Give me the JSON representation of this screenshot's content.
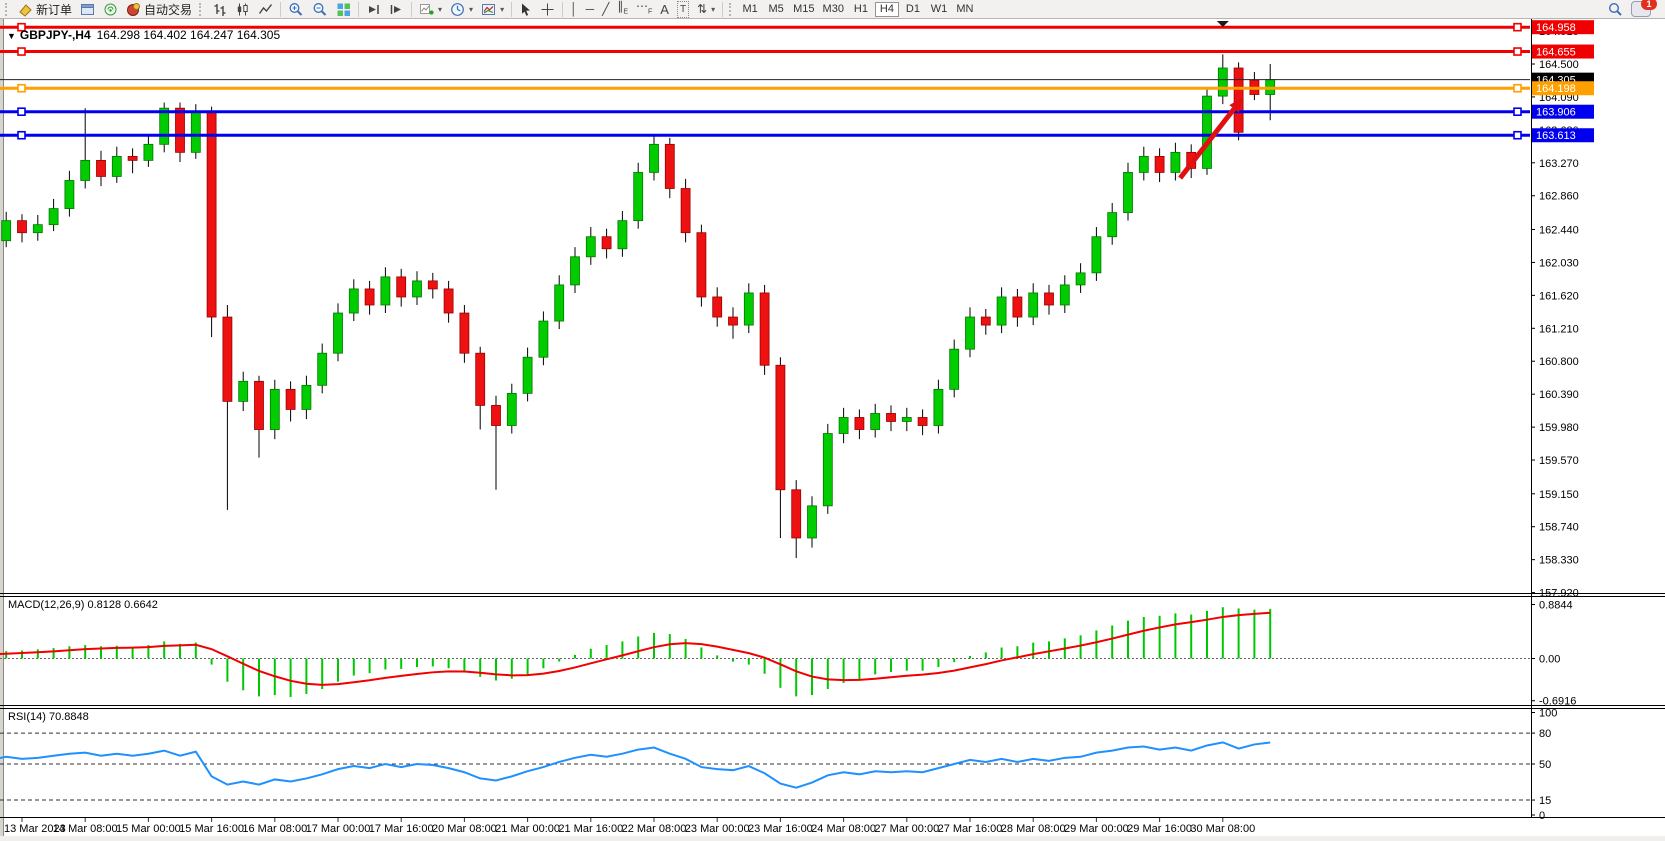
{
  "toolbar": {
    "new_order_label": "新订单",
    "autotrading_label": "自动交易",
    "timeframes": [
      "M1",
      "M5",
      "M15",
      "M30",
      "H1",
      "H4",
      "D1",
      "W1",
      "MN"
    ],
    "active_timeframe": "H4",
    "notification_count": "1"
  },
  "chart": {
    "symbol_title": "GBPJPY-,H4",
    "ohlc_text": "164.298 164.402 164.247 164.305",
    "macd_label": "MACD(12,26,9) 0.8128 0.6642",
    "rsi_label": "RSI(14) 70.8848"
  },
  "chart_data": [
    {
      "type": "candlestick",
      "title": "GBPJPY-,H4",
      "ohlc_display": {
        "open": "164.298",
        "high": "164.402",
        "low": "164.247",
        "close": "164.305"
      },
      "price_range": [
        157.915,
        165.06
      ],
      "price_axis_ticks": [
        "164.910",
        "164.500",
        "164.090",
        "163.680",
        "163.270",
        "162.860",
        "162.440",
        "162.030",
        "161.620",
        "161.210",
        "160.800",
        "160.390",
        "159.980",
        "159.570",
        "159.150",
        "158.740",
        "158.330",
        "157.920"
      ],
      "time_labels": [
        "13 Mar 2023",
        "14 Mar 08:00",
        "15 Mar 00:00",
        "15 Mar 16:00",
        "16 Mar 08:00",
        "17 Mar 00:00",
        "17 Mar 16:00",
        "20 Mar 08:00",
        "21 Mar 00:00",
        "21 Mar 16:00",
        "22 Mar 08:00",
        "23 Mar 00:00",
        "23 Mar 16:00",
        "24 Mar 08:00",
        "27 Mar 00:00",
        "27 Mar 16:00",
        "28 Mar 08:00",
        "29 Mar 00:00",
        "29 Mar 16:00",
        "30 Mar 08:00"
      ],
      "up_color": "#00CC00",
      "down_color": "#EE1111",
      "wick_color": "#000000",
      "hlines": [
        {
          "price": 164.958,
          "label": "164.958",
          "color": "#F00000"
        },
        {
          "price": 164.655,
          "label": "164.655",
          "color": "#F00000"
        },
        {
          "price": 164.198,
          "label": "164.198",
          "color": "#FFA000"
        },
        {
          "price": 163.906,
          "label": "163.906",
          "color": "#0000EE"
        },
        {
          "price": 163.613,
          "label": "163.613",
          "color": "#0000EE"
        }
      ],
      "current_price": {
        "price": 164.305,
        "label": "164.305",
        "color": "#000000"
      },
      "annotation_arrow": {
        "from_candle": 77.3,
        "from_price": 163.08,
        "to_candle": 81.3,
        "to_price": 164.09,
        "color": "#E01010"
      },
      "shift_marker_candle": 80,
      "candles": [
        [
          162.55,
          162.65,
          162.3,
          162.4
        ],
        [
          162.4,
          162.5,
          161.95,
          162.1
        ],
        [
          162.1,
          162.42,
          162.02,
          162.3
        ],
        [
          162.3,
          162.66,
          162.22,
          162.55
        ],
        [
          162.55,
          162.63,
          162.28,
          162.4
        ],
        [
          162.4,
          162.62,
          162.3,
          162.5
        ],
        [
          162.5,
          162.82,
          162.42,
          162.7
        ],
        [
          162.7,
          163.17,
          162.6,
          163.05
        ],
        [
          163.05,
          163.95,
          162.95,
          163.3
        ],
        [
          163.3,
          163.42,
          162.98,
          163.1
        ],
        [
          163.1,
          163.47,
          163.02,
          163.35
        ],
        [
          163.35,
          163.45,
          163.14,
          163.3
        ],
        [
          163.3,
          163.62,
          163.22,
          163.5
        ],
        [
          163.5,
          164.02,
          163.4,
          163.95
        ],
        [
          163.95,
          164.02,
          163.28,
          163.4
        ],
        [
          163.4,
          164.0,
          163.32,
          163.9
        ],
        [
          163.9,
          163.97,
          161.1,
          161.35
        ],
        [
          161.35,
          161.5,
          158.95,
          160.3
        ],
        [
          160.3,
          160.67,
          160.18,
          160.55
        ],
        [
          160.55,
          160.62,
          159.6,
          159.95
        ],
        [
          159.95,
          160.57,
          159.83,
          160.45
        ],
        [
          160.45,
          160.55,
          160.05,
          160.2
        ],
        [
          160.2,
          160.62,
          160.08,
          160.5
        ],
        [
          160.5,
          161.02,
          160.4,
          160.9
        ],
        [
          160.9,
          161.52,
          160.8,
          161.4
        ],
        [
          161.4,
          161.82,
          161.3,
          161.7
        ],
        [
          161.7,
          161.8,
          161.38,
          161.5
        ],
        [
          161.5,
          161.97,
          161.4,
          161.85
        ],
        [
          161.85,
          161.95,
          161.48,
          161.6
        ],
        [
          161.6,
          161.92,
          161.5,
          161.8
        ],
        [
          161.8,
          161.9,
          161.58,
          161.7
        ],
        [
          161.7,
          161.8,
          161.28,
          161.4
        ],
        [
          161.4,
          161.5,
          160.78,
          160.9
        ],
        [
          160.9,
          160.98,
          159.95,
          160.25
        ],
        [
          160.25,
          160.37,
          159.2,
          160.0
        ],
        [
          160.0,
          160.52,
          159.9,
          160.4
        ],
        [
          160.4,
          160.97,
          160.3,
          160.85
        ],
        [
          160.85,
          161.42,
          160.75,
          161.3
        ],
        [
          161.3,
          161.87,
          161.2,
          161.75
        ],
        [
          161.75,
          162.22,
          161.65,
          162.1
        ],
        [
          162.1,
          162.47,
          162.0,
          162.35
        ],
        [
          162.35,
          162.45,
          162.08,
          162.2
        ],
        [
          162.2,
          162.67,
          162.1,
          162.55
        ],
        [
          162.55,
          163.27,
          162.45,
          163.15
        ],
        [
          163.15,
          163.62,
          163.05,
          163.5
        ],
        [
          163.5,
          163.58,
          162.83,
          162.95
        ],
        [
          162.95,
          163.07,
          162.28,
          162.4
        ],
        [
          162.4,
          162.5,
          161.48,
          161.6
        ],
        [
          161.6,
          161.72,
          161.23,
          161.35
        ],
        [
          161.35,
          161.47,
          161.08,
          161.25
        ],
        [
          161.25,
          161.77,
          161.15,
          161.65
        ],
        [
          161.65,
          161.75,
          160.63,
          160.75
        ],
        [
          160.75,
          160.85,
          158.6,
          159.2
        ],
        [
          159.2,
          159.32,
          158.35,
          158.6
        ],
        [
          158.6,
          159.12,
          158.48,
          159.0
        ],
        [
          159.0,
          160.02,
          158.9,
          159.9
        ],
        [
          159.9,
          160.22,
          159.78,
          160.1
        ],
        [
          160.1,
          160.2,
          159.83,
          159.95
        ],
        [
          159.95,
          160.27,
          159.85,
          160.15
        ],
        [
          160.15,
          160.25,
          159.93,
          160.05
        ],
        [
          160.05,
          160.22,
          159.93,
          160.1
        ],
        [
          160.1,
          160.2,
          159.88,
          160.0
        ],
        [
          160.0,
          160.57,
          159.9,
          160.45
        ],
        [
          160.45,
          161.07,
          160.35,
          160.95
        ],
        [
          160.95,
          161.47,
          160.85,
          161.35
        ],
        [
          161.35,
          161.45,
          161.13,
          161.25
        ],
        [
          161.25,
          161.72,
          161.15,
          161.6
        ],
        [
          161.6,
          161.7,
          161.23,
          161.35
        ],
        [
          161.35,
          161.77,
          161.25,
          161.65
        ],
        [
          161.65,
          161.75,
          161.38,
          161.5
        ],
        [
          161.5,
          161.87,
          161.4,
          161.75
        ],
        [
          161.75,
          162.02,
          161.65,
          161.9
        ],
        [
          161.9,
          162.47,
          161.8,
          162.35
        ],
        [
          162.35,
          162.77,
          162.25,
          162.65
        ],
        [
          162.65,
          163.27,
          162.55,
          163.15
        ],
        [
          163.15,
          163.47,
          163.05,
          163.35
        ],
        [
          163.35,
          163.45,
          163.03,
          163.15
        ],
        [
          163.15,
          163.52,
          163.05,
          163.4
        ],
        [
          163.4,
          163.5,
          163.08,
          163.2
        ],
        [
          163.2,
          164.2,
          163.12,
          164.1
        ],
        [
          164.1,
          164.62,
          164.0,
          164.45
        ],
        [
          164.45,
          164.52,
          163.55,
          163.65
        ],
        [
          164.3,
          164.4,
          164.05,
          164.12
        ],
        [
          164.12,
          164.5,
          163.8,
          164.305
        ]
      ]
    },
    {
      "type": "bar",
      "name": "MACD(12,26,9)",
      "main_value_display": "0.8128",
      "signal_value_display": "0.6642",
      "axis_ticks": [
        "0.8844",
        "0.00",
        "-0.6916"
      ],
      "range": [
        -0.78,
        0.9
      ],
      "histogram_color": "#00C800",
      "signal_color": "#F20000",
      "values": [
        0.05,
        0.08,
        0.1,
        0.12,
        0.13,
        0.15,
        0.17,
        0.2,
        0.22,
        0.2,
        0.21,
        0.19,
        0.22,
        0.28,
        0.24,
        0.26,
        -0.1,
        -0.38,
        -0.52,
        -0.62,
        -0.6,
        -0.63,
        -0.58,
        -0.5,
        -0.38,
        -0.28,
        -0.24,
        -0.18,
        -0.17,
        -0.14,
        -0.13,
        -0.16,
        -0.22,
        -0.3,
        -0.36,
        -0.33,
        -0.26,
        -0.16,
        -0.05,
        0.06,
        0.16,
        0.22,
        0.28,
        0.36,
        0.42,
        0.4,
        0.32,
        0.18,
        0.05,
        -0.05,
        -0.1,
        -0.25,
        -0.48,
        -0.62,
        -0.6,
        -0.5,
        -0.4,
        -0.34,
        -0.26,
        -0.22,
        -0.2,
        -0.2,
        -0.14,
        -0.06,
        0.04,
        0.1,
        0.18,
        0.2,
        0.26,
        0.28,
        0.33,
        0.38,
        0.46,
        0.54,
        0.62,
        0.68,
        0.7,
        0.74,
        0.72,
        0.78,
        0.84,
        0.82,
        0.8,
        0.8128
      ]
    },
    {
      "type": "line",
      "name": "RSI(14)",
      "value_display": "70.8848",
      "axis_ticks": [
        "100",
        "80",
        "50",
        "15",
        "0"
      ],
      "levels": [
        80,
        50,
        15
      ],
      "range": [
        0,
        100
      ],
      "line_color": "#1E90FF",
      "values": [
        55,
        52,
        54,
        57,
        55,
        56,
        58,
        60,
        61,
        58,
        60,
        58,
        60,
        63,
        58,
        62,
        38,
        30,
        33,
        30,
        35,
        33,
        36,
        40,
        45,
        48,
        46,
        50,
        47,
        50,
        49,
        46,
        42,
        36,
        34,
        38,
        43,
        47,
        52,
        56,
        59,
        57,
        60,
        64,
        66,
        60,
        55,
        47,
        45,
        44,
        48,
        41,
        31,
        27,
        32,
        39,
        42,
        40,
        43,
        42,
        43,
        42,
        46,
        50,
        54,
        52,
        55,
        52,
        55,
        53,
        56,
        57,
        61,
        63,
        66,
        67,
        64,
        66,
        63,
        68,
        71,
        65,
        69,
        70.88
      ]
    }
  ]
}
